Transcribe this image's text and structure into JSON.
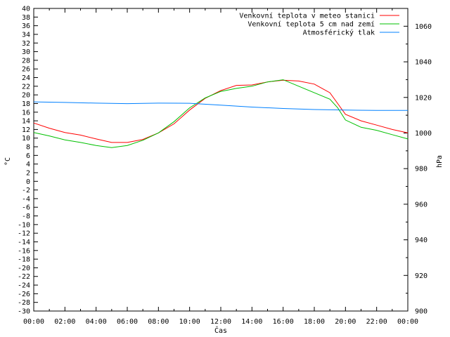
{
  "chart_data": {
    "type": "line",
    "xlabel": "Čas",
    "ylabel": "°C",
    "y2label": "hPa",
    "xlim": [
      0,
      24
    ],
    "ylim": [
      -30,
      40
    ],
    "y2lim": [
      900,
      1070
    ],
    "x_ticks": [
      "00:00",
      "02:00",
      "04:00",
      "06:00",
      "08:00",
      "10:00",
      "12:00",
      "14:00",
      "16:00",
      "18:00",
      "20:00",
      "22:00",
      "00:00"
    ],
    "y_ticks": [
      40,
      38,
      36,
      34,
      32,
      30,
      28,
      26,
      24,
      22,
      20,
      18,
      16,
      14,
      12,
      10,
      8,
      6,
      4,
      2,
      0,
      -2,
      -4,
      -6,
      -8,
      -10,
      -12,
      -14,
      -16,
      -18,
      -20,
      -22,
      -24,
      -26,
      -28,
      -30
    ],
    "y2_ticks": [
      1060,
      1040,
      1020,
      1000,
      980,
      960,
      940,
      920,
      900
    ],
    "grid": false,
    "legend_position": "top-right",
    "series": [
      {
        "name": "Venkovní teplota v meteo stanici",
        "color": "#ff0000",
        "axis": "left",
        "x": [
          0,
          1,
          2,
          3,
          4,
          5,
          6,
          7,
          8,
          9,
          10,
          11,
          12,
          13,
          14,
          15,
          16,
          17,
          18,
          19,
          19.5,
          20,
          21,
          22,
          23,
          24
        ],
        "values": [
          13.5,
          12.3,
          11.3,
          10.7,
          9.8,
          9.0,
          9.0,
          9.7,
          11.2,
          13.3,
          16.5,
          19.2,
          21.0,
          22.2,
          22.3,
          23.0,
          23.4,
          23.2,
          22.5,
          20.5,
          18.0,
          15.5,
          14.0,
          13.0,
          12.0,
          11.2
        ]
      },
      {
        "name": "Venkovní teplota 5 cm nad zemí",
        "color": "#00c000",
        "axis": "left",
        "x": [
          0,
          1,
          2,
          3,
          4,
          5,
          6,
          7,
          8,
          9,
          10,
          11,
          12,
          13,
          14,
          15,
          16,
          17,
          18,
          19,
          19.5,
          20,
          21,
          22,
          23,
          24
        ],
        "values": [
          11.3,
          10.5,
          9.6,
          9.0,
          8.3,
          7.8,
          8.3,
          9.5,
          11.2,
          13.8,
          17.0,
          19.3,
          20.8,
          21.5,
          22.0,
          23.0,
          23.5,
          22.0,
          20.5,
          19.0,
          17.0,
          14.2,
          12.5,
          11.8,
          10.8,
          9.8
        ]
      },
      {
        "name": "Atmosférický tlak",
        "color": "#0080ff",
        "axis": "right",
        "x": [
          0,
          2,
          4,
          6,
          8,
          10,
          12,
          14,
          16,
          18,
          20,
          22,
          24
        ],
        "values": [
          1017.5,
          1017.2,
          1016.8,
          1016.5,
          1016.8,
          1016.7,
          1015.7,
          1014.6,
          1013.8,
          1013.2,
          1012.9,
          1012.7,
          1012.7
        ]
      }
    ]
  }
}
